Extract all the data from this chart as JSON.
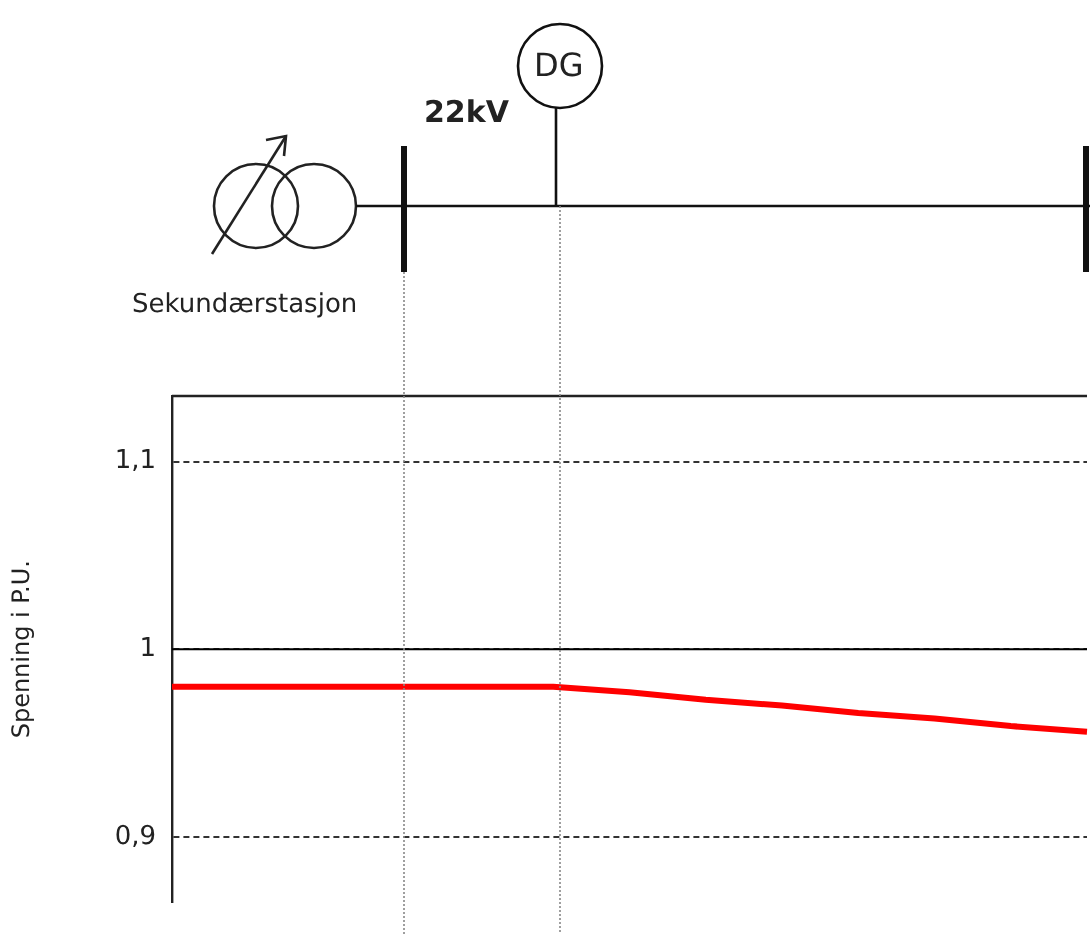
{
  "chart_data": {
    "type": "line",
    "ylabel": "Spenning i P.U.",
    "categories": [
      null,
      null,
      null,
      null,
      null,
      null,
      null,
      null,
      null,
      null,
      null,
      null,
      null
    ],
    "series": [
      {
        "color": "#ff0000",
        "values": [
          0.98,
          0.98,
          0.98,
          0.98,
          0.98,
          0.98,
          0.977,
          0.973,
          0.97,
          0.966,
          0.963,
          0.959,
          0.956
        ]
      }
    ],
    "ylim": [
      0.865,
      1.135
    ],
    "yticks": [
      {
        "value": 0.9,
        "label": "0,9"
      },
      {
        "value": 1,
        "label": "1"
      },
      {
        "value": 1.1,
        "label": "1,1"
      }
    ],
    "tick_labels": "y",
    "grid": "y",
    "legend": false,
    "marker": "none",
    "line_style": "solid",
    "ref_lines": [
      {
        "axis": "y",
        "value": 1,
        "color": "#000000",
        "line_style": "solid"
      }
    ],
    "annotations": [
      "Sekundærstasjon",
      "22kV",
      "DG"
    ]
  }
}
